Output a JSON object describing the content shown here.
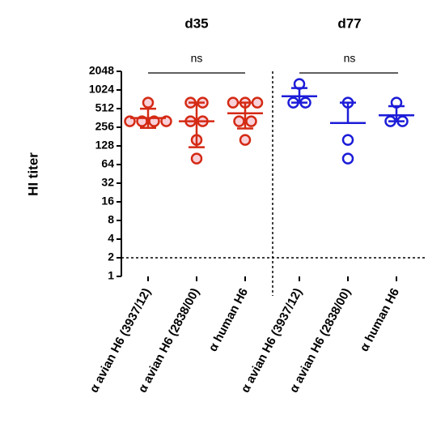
{
  "chart_data": {
    "type": "dotplot",
    "y_label": "HI titer",
    "log_base": 2,
    "categories": [
      "α avian H6 (3937/12)",
      "α avian H6 (2838/00)",
      "α human H6",
      "α avian H6 (3937/12)",
      "α avian H6 (2838/00)",
      "α human H6"
    ],
    "series": [
      {
        "name": "d35",
        "color": "#d42a14",
        "fill": "#f6c6cf",
        "range": [
          0,
          3
        ],
        "values": [
          [
            640,
            320,
            320,
            320,
            320
          ],
          [
            640,
            640,
            320,
            320,
            160,
            80
          ],
          [
            640,
            640,
            640,
            320,
            320,
            160
          ]
        ],
        "means": [
          360,
          320,
          430
        ],
        "lower": [
          250,
          122,
          245
        ],
        "upper": [
          510,
          640,
          640
        ]
      },
      {
        "name": "d77",
        "color": "#1c1cd8",
        "fill": "#ffffff",
        "range": [
          3,
          6
        ],
        "values": [
          [
            1280,
            640,
            640
          ],
          [
            640,
            160,
            80
          ],
          [
            640,
            320,
            320
          ]
        ],
        "means": [
          810,
          300,
          400
        ],
        "lower": [
          640,
          300,
          320
        ],
        "upper": [
          1100,
          640,
          560
        ]
      }
    ],
    "annotations": [
      "ns",
      "ns"
    ],
    "threshold": 2,
    "ylim": [
      1,
      2048
    ],
    "yticks": [
      1,
      2,
      4,
      8,
      16,
      32,
      64,
      128,
      256,
      512,
      1024,
      2048
    ]
  }
}
